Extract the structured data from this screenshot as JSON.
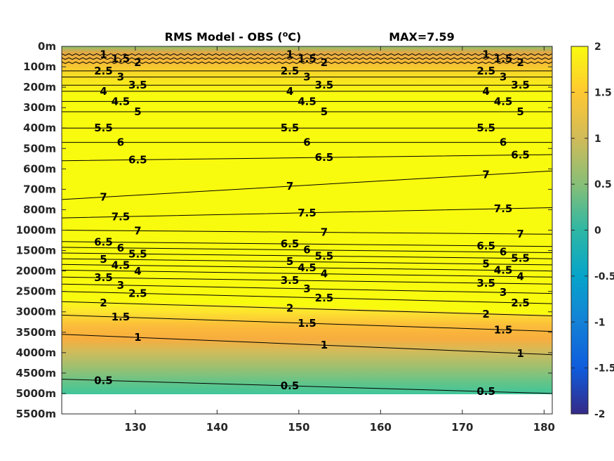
{
  "chart_data": {
    "type": "heatmap",
    "title": "RMS Model - OBS (°C)",
    "title_main": "RMS Model - OBS (",
    "title_unit_sup": "o",
    "title_unit": "C)",
    "max_label": "MAX=7.59",
    "x_ticks": [
      130,
      140,
      150,
      160,
      170,
      180
    ],
    "xlim": [
      121,
      181
    ],
    "y_ticks": [
      "0m",
      "100m",
      "200m",
      "300m",
      "400m",
      "500m",
      "600m",
      "700m",
      "800m",
      "1000m",
      "1500m",
      "2000m",
      "2500m",
      "3000m",
      "3500m",
      "4000m",
      "4500m",
      "5000m",
      "5500m"
    ],
    "colorbar_ticks": [
      2,
      1.5,
      1,
      0.5,
      0,
      -0.5,
      -1,
      -1.5,
      -2
    ],
    "colorbar_tick_labels": [
      "2",
      "1.5",
      "1",
      "0.5",
      "0",
      "-0.5",
      "-1",
      "-1.5",
      "-2"
    ],
    "clim": [
      -2,
      2
    ],
    "colormap": "parula",
    "colormap_stops": [
      "#352a87",
      "#0f5cdd",
      "#1481d6",
      "#06a4ca",
      "#2eb7a4",
      "#87bf77",
      "#d1bb59",
      "#fec832",
      "#f9fb0e"
    ],
    "data_bottom_level": "5000m",
    "contours": [
      {
        "level": 1,
        "label": "1",
        "depth": [
          "40m",
          "40m"
        ]
      },
      {
        "level": 1.5,
        "label": "1.5",
        "depth": [
          "60m",
          "60m"
        ]
      },
      {
        "level": 2,
        "label": "2",
        "depth": [
          "80m",
          "80m"
        ]
      },
      {
        "level": 2.5,
        "label": "2.5",
        "depth": [
          "120m",
          "120m"
        ]
      },
      {
        "level": 3,
        "label": "3",
        "depth": [
          "150m",
          "150m"
        ]
      },
      {
        "level": 3.5,
        "label": "3.5",
        "depth": [
          "190m",
          "190m"
        ]
      },
      {
        "level": 4,
        "label": "4",
        "depth": [
          "220m",
          "220m"
        ]
      },
      {
        "level": 4.5,
        "label": "4.5",
        "depth": [
          "270m",
          "270m"
        ]
      },
      {
        "level": 5,
        "label": "5",
        "depth": [
          "320m",
          "320m"
        ]
      },
      {
        "level": 5.5,
        "label": "5.5",
        "depth": [
          "400m",
          "400m"
        ]
      },
      {
        "level": 6,
        "label": "6",
        "depth": [
          "470m",
          "470m"
        ]
      },
      {
        "level": 6.5,
        "label": "6.5",
        "depth": [
          "560m",
          "530m"
        ]
      },
      {
        "level": 7,
        "label": "7",
        "depth": [
          "750m",
          "610m"
        ]
      },
      {
        "level": 7.5,
        "label": "7.5",
        "depth": [
          "880m",
          "790m"
        ]
      },
      {
        "level": 7,
        "label": "7",
        "depth": [
          "1000m",
          "1100m"
        ]
      },
      {
        "level": 6.5,
        "label": "6.5",
        "depth": [
          "1280m",
          "1400m"
        ]
      },
      {
        "level": 6,
        "label": "6",
        "depth": [
          "1420m",
          "1550m"
        ]
      },
      {
        "level": 5.5,
        "label": "5.5",
        "depth": [
          "1560m",
          "1700m"
        ]
      },
      {
        "level": 5,
        "label": "5",
        "depth": [
          "1700m",
          "1850m"
        ]
      },
      {
        "level": 4.5,
        "label": "4.5",
        "depth": [
          "1840m",
          "2000m"
        ]
      },
      {
        "level": 4,
        "label": "4",
        "depth": [
          "1980m",
          "2150m"
        ]
      },
      {
        "level": 3.5,
        "label": "3.5",
        "depth": [
          "2150m",
          "2320m"
        ]
      },
      {
        "level": 3,
        "label": "3",
        "depth": [
          "2320m",
          "2550m"
        ]
      },
      {
        "level": 2.5,
        "label": "2.5",
        "depth": [
          "2500m",
          "2800m"
        ]
      },
      {
        "level": 2,
        "label": "2",
        "depth": [
          "2750m",
          "3100m"
        ]
      },
      {
        "level": 1.5,
        "label": "1.5",
        "depth": [
          "3080m",
          "3480m"
        ]
      },
      {
        "level": 1,
        "label": "1",
        "depth": [
          "3550m",
          "4050m"
        ]
      },
      {
        "level": 0.5,
        "label": "0.5",
        "depth": [
          "4650m",
          "5000m"
        ]
      }
    ]
  }
}
